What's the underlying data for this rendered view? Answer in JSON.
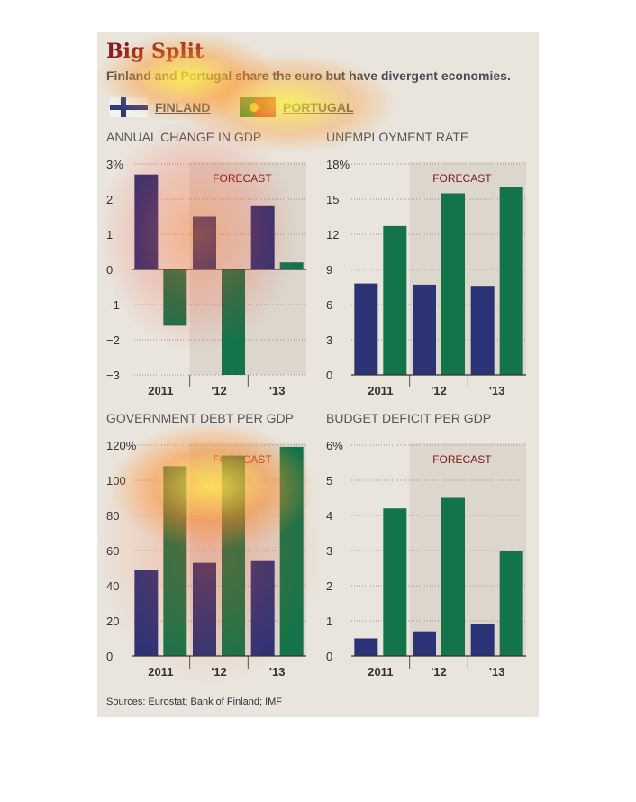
{
  "header": {
    "title": "Big Split",
    "subtitle": "Finland and Portugal share the euro but have divergent economies."
  },
  "legend": {
    "finland": "FINLAND",
    "portugal": "PORTUGAL"
  },
  "colors": {
    "finland": "#2c3276",
    "portugal": "#13744a",
    "forecast_shade": "#dcd6cd",
    "title": "#8a1b1b"
  },
  "source": "Sources: Eurostat; Bank of Finland; IMF",
  "chart_data": [
    {
      "type": "bar",
      "title": "ANNUAL CHANGE IN GDP",
      "annotation": "FORECAST",
      "categories": [
        "2011",
        "'12",
        "'13"
      ],
      "ylim": [
        -3,
        3
      ],
      "yticks": [
        3,
        2,
        1,
        0,
        -1,
        -2,
        -3
      ],
      "ytick_labels": [
        "3%",
        "2",
        "1",
        "0",
        "−1",
        "−2",
        "−3"
      ],
      "series": [
        {
          "name": "FINLAND",
          "values": [
            2.7,
            1.5,
            1.8
          ]
        },
        {
          "name": "PORTUGAL",
          "values": [
            -1.6,
            -3.0,
            0.2
          ]
        }
      ]
    },
    {
      "type": "bar",
      "title": "UNEMPLOYMENT RATE",
      "annotation": "FORECAST",
      "categories": [
        "2011",
        "'12",
        "'13"
      ],
      "ylim": [
        0,
        18
      ],
      "yticks": [
        18,
        15,
        12,
        9,
        6,
        3,
        0
      ],
      "ytick_labels": [
        "18%",
        "15",
        "12",
        "9",
        "6",
        "3",
        "0"
      ],
      "series": [
        {
          "name": "FINLAND",
          "values": [
            7.8,
            7.7,
            7.6
          ]
        },
        {
          "name": "PORTUGAL",
          "values": [
            12.7,
            15.5,
            16.0
          ]
        }
      ]
    },
    {
      "type": "bar",
      "title": "GOVERNMENT DEBT PER GDP",
      "annotation": "FORECAST",
      "categories": [
        "2011",
        "'12",
        "'13"
      ],
      "ylim": [
        0,
        120
      ],
      "yticks": [
        120,
        100,
        80,
        60,
        40,
        20,
        0
      ],
      "ytick_labels": [
        "120%",
        "100",
        "80",
        "60",
        "40",
        "20",
        "0"
      ],
      "series": [
        {
          "name": "FINLAND",
          "values": [
            49,
            53,
            54
          ]
        },
        {
          "name": "PORTUGAL",
          "values": [
            108,
            114,
            119
          ]
        }
      ]
    },
    {
      "type": "bar",
      "title": "BUDGET DEFICIT PER GDP",
      "annotation": "FORECAST",
      "categories": [
        "2011",
        "'12",
        "'13"
      ],
      "ylim": [
        0,
        6
      ],
      "yticks": [
        6,
        5,
        4,
        3,
        2,
        1,
        0
      ],
      "ytick_labels": [
        "6%",
        "5",
        "4",
        "3",
        "2",
        "1",
        "0"
      ],
      "series": [
        {
          "name": "FINLAND",
          "values": [
            0.5,
            0.7,
            0.9
          ]
        },
        {
          "name": "PORTUGAL",
          "values": [
            4.2,
            4.5,
            3.0
          ]
        }
      ]
    }
  ]
}
